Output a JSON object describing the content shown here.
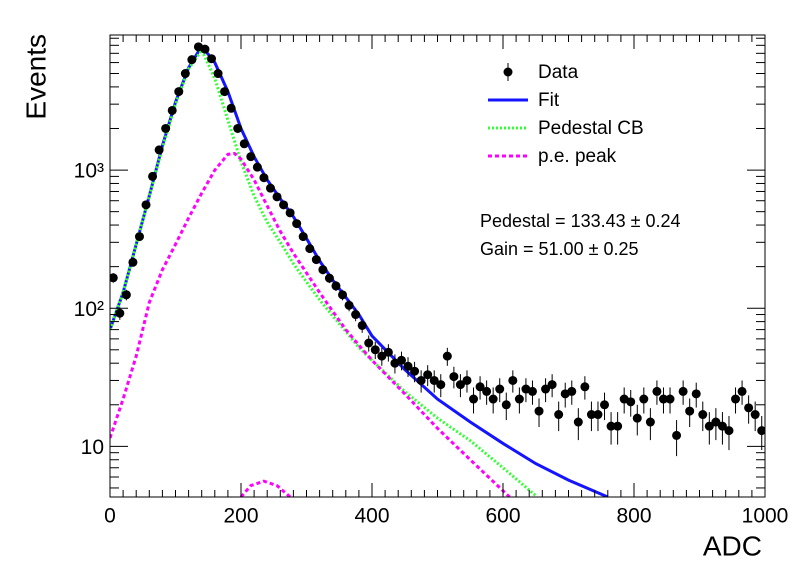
{
  "chart_data": {
    "type": "histfit",
    "xlabel": "ADC",
    "ylabel": "Events",
    "xlim": [
      0,
      1000
    ],
    "ylim": [
      4.3,
      9500
    ],
    "log_y": true,
    "xticks": [
      0,
      200,
      400,
      600,
      800,
      1000
    ],
    "xminorticks": [
      20,
      40,
      60,
      80,
      100,
      120,
      140,
      160,
      180,
      220,
      240,
      260,
      280,
      300,
      320,
      340,
      360,
      380,
      420,
      440,
      460,
      480,
      500,
      520,
      540,
      560,
      580,
      620,
      640,
      660,
      680,
      700,
      720,
      740,
      760,
      780,
      820,
      840,
      860,
      880,
      900,
      920,
      940,
      960,
      980
    ],
    "yticks": [
      10,
      {
        "value": 100,
        "label": "10²"
      },
      {
        "value": 1000,
        "label": "10³"
      }
    ],
    "yminorticks": [
      5,
      6,
      7,
      8,
      9,
      20,
      30,
      40,
      50,
      60,
      70,
      80,
      90,
      200,
      300,
      400,
      500,
      600,
      700,
      800,
      900,
      2000,
      3000,
      4000,
      5000,
      6000,
      7000,
      8000,
      9000
    ],
    "legend": "top-right",
    "annotations": [
      "Pedestal = 133.43 ± 0.24",
      "Gain = 51.00 ± 0.25"
    ],
    "series": [
      {
        "name": "Data",
        "color": "#000000",
        "style": "points",
        "x": [
          5,
          15,
          25,
          35,
          45,
          55,
          65,
          75,
          85,
          95,
          105,
          115,
          125,
          135,
          145,
          155,
          165,
          175,
          185,
          195,
          205,
          215,
          225,
          235,
          245,
          255,
          265,
          275,
          285,
          295,
          305,
          315,
          325,
          335,
          345,
          355,
          365,
          375,
          385,
          395,
          405,
          415,
          425,
          435,
          445,
          455,
          465,
          475,
          485,
          495,
          505,
          515,
          525,
          535,
          545,
          555,
          565,
          575,
          585,
          595,
          605,
          615,
          625,
          635,
          645,
          655,
          665,
          675,
          685,
          695,
          705,
          715,
          725,
          735,
          745,
          755,
          765,
          775,
          785,
          795,
          805,
          815,
          825,
          835,
          845,
          855,
          865,
          875,
          885,
          895,
          905,
          915,
          925,
          935,
          945,
          955,
          965,
          975,
          985,
          995
        ],
        "values": [
          166,
          92,
          125,
          215,
          330,
          560,
          900,
          1400,
          2000,
          2700,
          3700,
          5000,
          6300,
          7800,
          7500,
          6400,
          5000,
          3700,
          2800,
          2000,
          1550,
          1250,
          1050,
          880,
          740,
          640,
          560,
          490,
          410,
          330,
          270,
          225,
          190,
          165,
          145,
          125,
          105,
          90,
          75,
          56,
          50,
          45,
          48,
          40,
          42,
          38,
          35,
          30,
          33,
          30,
          28,
          45,
          32,
          28,
          30,
          22,
          27,
          25,
          22,
          26,
          20,
          30,
          22,
          26,
          25,
          18,
          26,
          28,
          17,
          24,
          25,
          15,
          27,
          17,
          17,
          20,
          14,
          14,
          22,
          21,
          16,
          22,
          15,
          25,
          22,
          22,
          12,
          25,
          18,
          24,
          17,
          14,
          15,
          14,
          13,
          22,
          25,
          19,
          17,
          13
        ],
        "errors": [
          13,
          9.6,
          11,
          15,
          18,
          24,
          30,
          37,
          45,
          52,
          61,
          71,
          79,
          88,
          87,
          80,
          71,
          61,
          53,
          45,
          39,
          35,
          32,
          30,
          27,
          25,
          24,
          22,
          20,
          18,
          16,
          15,
          14,
          13,
          12,
          11,
          10,
          9.5,
          8.7,
          7.5,
          7.1,
          6.7,
          6.9,
          6.3,
          6.5,
          6.2,
          5.9,
          5.5,
          5.7,
          5.5,
          5.3,
          6.7,
          5.7,
          5.3,
          5.5,
          4.7,
          5.2,
          5,
          4.7,
          5.1,
          4.5,
          5.5,
          4.7,
          5.1,
          5,
          4.2,
          5.1,
          5.3,
          4.1,
          4.9,
          5,
          3.9,
          5.2,
          4.1,
          4.1,
          4.5,
          3.7,
          3.7,
          4.7,
          4.6,
          4,
          4.7,
          3.9,
          5,
          4.7,
          4.7,
          3.5,
          5,
          4.2,
          4.9,
          4.1,
          3.7,
          3.9,
          3.7,
          3.6,
          4.7,
          5,
          4.4,
          4.1,
          3.6
        ]
      },
      {
        "name": "Fit",
        "color": "#1414ff",
        "style": "solid",
        "x": [
          0,
          20,
          40,
          60,
          80,
          100,
          120,
          140,
          160,
          180,
          200,
          220,
          240,
          260,
          280,
          300,
          320,
          340,
          360,
          380,
          400,
          450,
          500,
          550,
          600,
          650,
          700,
          760
        ],
        "values": [
          70,
          130,
          290,
          650,
          1500,
          3100,
          5500,
          7900,
          6000,
          3700,
          2000,
          1250,
          850,
          620,
          460,
          320,
          220,
          160,
          120,
          90,
          63,
          36,
          22,
          15,
          10.5,
          7.5,
          5.7,
          4.3
        ]
      },
      {
        "name": "Pedestal CB",
        "color": "#33ff33",
        "style": "dotted",
        "x": [
          0,
          20,
          40,
          60,
          80,
          100,
          120,
          140,
          160,
          180,
          200,
          220,
          240,
          260,
          280,
          300,
          320,
          340,
          360,
          380,
          400,
          450,
          500,
          550,
          600,
          650
        ],
        "values": [
          70,
          130,
          290,
          650,
          1450,
          3000,
          5400,
          7400,
          4600,
          2300,
          1150,
          650,
          420,
          300,
          210,
          155,
          115,
          88,
          68,
          52,
          42,
          25,
          16,
          11,
          7,
          4.4
        ]
      },
      {
        "name": "p.e. peak",
        "color": "#ff00ff",
        "style": "dashed",
        "x": [
          0,
          20,
          40,
          60,
          80,
          100,
          120,
          140,
          160,
          180,
          190,
          200,
          220,
          240,
          260,
          280,
          300,
          320,
          340,
          360,
          380,
          400,
          450,
          500,
          550,
          610,
          null,
          200,
          215,
          235,
          255,
          275
        ],
        "values": [
          11.5,
          22,
          45,
          110,
          190,
          290,
          450,
          680,
          1000,
          1300,
          1320,
          1200,
          850,
          550,
          360,
          250,
          180,
          130,
          95,
          70,
          54,
          42,
          24,
          13.5,
          8,
          4.3,
          null,
          4.3,
          5.2,
          5.6,
          5.2,
          4.3
        ]
      }
    ]
  }
}
